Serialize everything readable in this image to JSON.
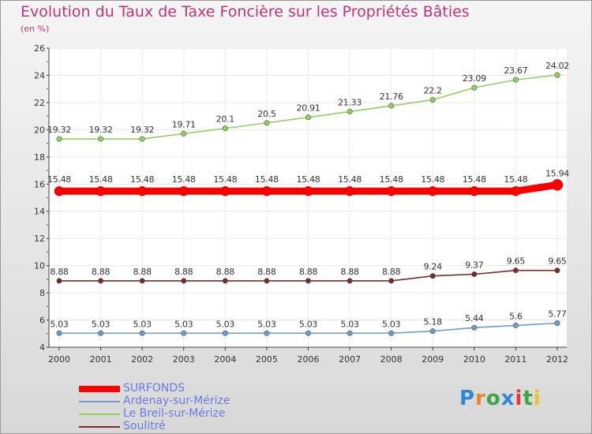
{
  "title": "Evolution du Taux de Taxe Foncière sur les Propriétés Bâties",
  "subtitle": "(en %)",
  "logo": {
    "text": "Proxiti",
    "letter_colors": [
      "#2f86d8",
      "#e8842a",
      "#3aa840",
      "#2f86d8",
      "#e03a3a",
      "#3aa840",
      "#e8c62a"
    ]
  },
  "chart_data": {
    "type": "line",
    "x": [
      "2000",
      "2001",
      "2002",
      "2003",
      "2004",
      "2005",
      "2006",
      "2007",
      "2008",
      "2009",
      "2010",
      "2011",
      "2012"
    ],
    "ylim": [
      4,
      26
    ],
    "yticks": [
      "4",
      "6",
      "8",
      "10",
      "12",
      "14",
      "16",
      "18",
      "20",
      "22",
      "24",
      "26"
    ],
    "grid": true,
    "legend_position": "bottom-left",
    "series": [
      {
        "name": "SURFONDS",
        "color": "#ff0000",
        "values": [
          15.48,
          15.48,
          15.48,
          15.48,
          15.48,
          15.48,
          15.48,
          15.48,
          15.48,
          15.48,
          15.48,
          15.48,
          15.94
        ],
        "labels": [
          "15.48",
          "15.48",
          "15.48",
          "15.48",
          "15.48",
          "15.48",
          "15.48",
          "15.48",
          "15.48",
          "15.48",
          "15.48",
          "15.48",
          "15.94"
        ]
      },
      {
        "name": "Ardenay-sur-Mérize",
        "color": "#6b9bcf",
        "values": [
          5.03,
          5.03,
          5.03,
          5.03,
          5.03,
          5.03,
          5.03,
          5.03,
          5.03,
          5.18,
          5.44,
          5.6,
          5.77
        ],
        "labels": [
          "5.03",
          "5.03",
          "5.03",
          "5.03",
          "5.03",
          "5.03",
          "5.03",
          "5.03",
          "5.03",
          "5.18",
          "5.44",
          "5.6",
          "5.77"
        ]
      },
      {
        "name": "Le Breil-sur-Mérize",
        "color": "#92d060",
        "values": [
          19.32,
          19.32,
          19.32,
          19.71,
          20.1,
          20.5,
          20.91,
          21.33,
          21.76,
          22.2,
          23.09,
          23.67,
          24.02
        ],
        "labels": [
          "19.32",
          "19.32",
          "19.32",
          "19.71",
          "20.1",
          "20.5",
          "20.91",
          "21.33",
          "21.76",
          "22.2",
          "23.09",
          "23.67",
          "24.02"
        ]
      },
      {
        "name": "Soulitré",
        "color": "#7b2a2a",
        "values": [
          8.88,
          8.88,
          8.88,
          8.88,
          8.88,
          8.88,
          8.88,
          8.88,
          8.88,
          9.24,
          9.37,
          9.65,
          9.65
        ],
        "labels": [
          "8.88",
          "8.88",
          "8.88",
          "8.88",
          "8.88",
          "8.88",
          "8.88",
          "8.88",
          "8.88",
          "9.24",
          "9.37",
          "9.65",
          "9.65"
        ]
      }
    ]
  }
}
